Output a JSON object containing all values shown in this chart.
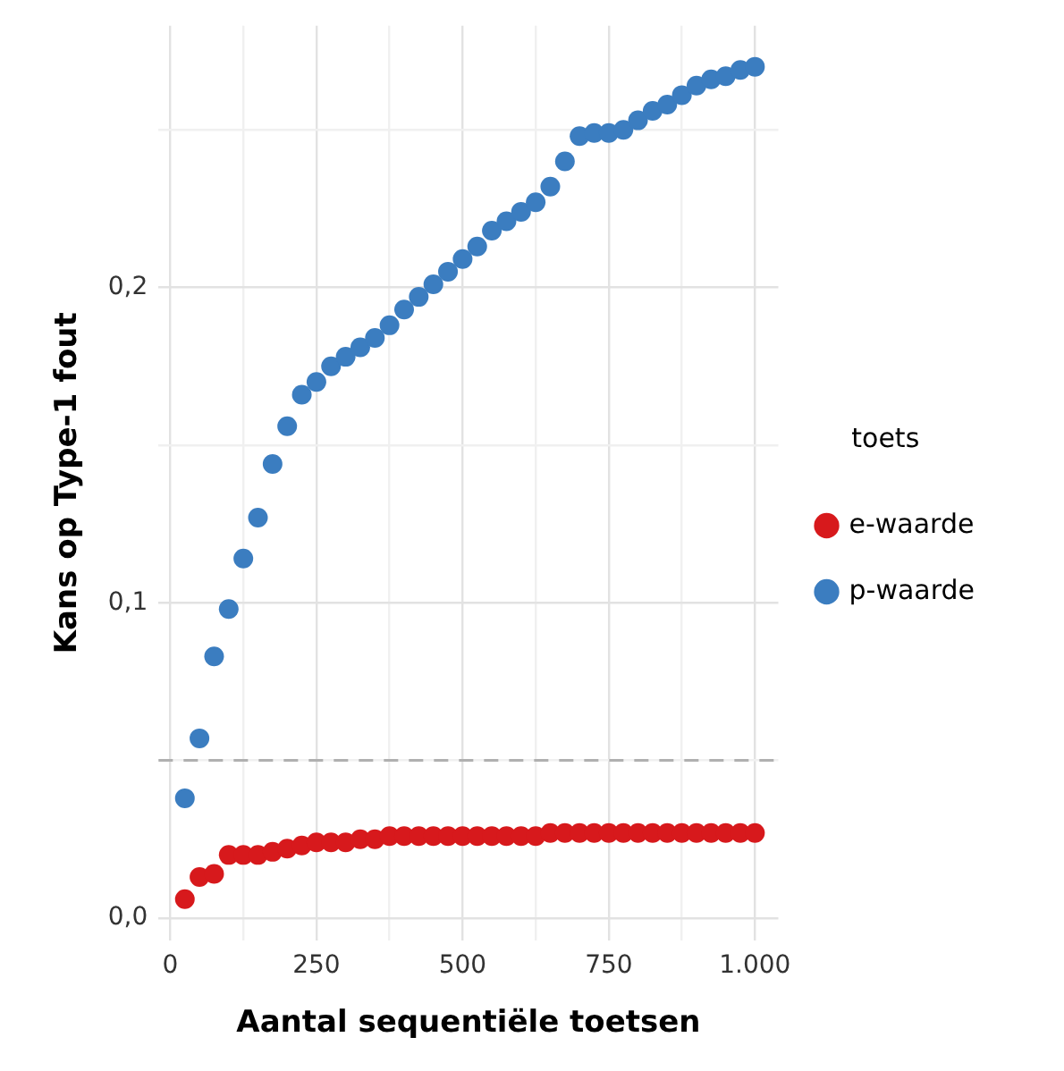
{
  "chart_data": {
    "type": "scatter",
    "xlabel": "Aantal sequentiële toetsen",
    "ylabel": "Kans op Type-1 fout",
    "legend_title": "toets",
    "x": [
      25,
      50,
      75,
      100,
      125,
      150,
      175,
      200,
      225,
      250,
      275,
      300,
      325,
      350,
      375,
      400,
      425,
      450,
      475,
      500,
      525,
      550,
      575,
      600,
      625,
      650,
      675,
      700,
      725,
      750,
      775,
      800,
      825,
      850,
      875,
      900,
      925,
      950,
      975,
      1000
    ],
    "series": [
      {
        "name": "e-waarde",
        "color": "#d7191c",
        "values": [
          0.006,
          0.013,
          0.014,
          0.02,
          0.02,
          0.02,
          0.021,
          0.022,
          0.023,
          0.024,
          0.024,
          0.024,
          0.025,
          0.025,
          0.026,
          0.026,
          0.026,
          0.026,
          0.026,
          0.026,
          0.026,
          0.026,
          0.026,
          0.026,
          0.026,
          0.027,
          0.027,
          0.027,
          0.027,
          0.027,
          0.027,
          0.027,
          0.027,
          0.027,
          0.027,
          0.027,
          0.027,
          0.027,
          0.027,
          0.027
        ]
      },
      {
        "name": "p-waarde",
        "color": "#3b7dc0",
        "values": [
          0.038,
          0.057,
          0.083,
          0.098,
          0.114,
          0.127,
          0.144,
          0.156,
          0.166,
          0.17,
          0.175,
          0.178,
          0.181,
          0.184,
          0.188,
          0.193,
          0.197,
          0.201,
          0.205,
          0.209,
          0.213,
          0.218,
          0.221,
          0.224,
          0.227,
          0.232,
          0.24,
          0.248,
          0.249,
          0.249,
          0.25,
          0.253,
          0.256,
          0.258,
          0.261,
          0.264,
          0.266,
          0.267,
          0.269,
          0.27
        ]
      }
    ],
    "xlim": [
      -20,
      1040
    ],
    "xticks": [
      0,
      {
        "value": 125,
        "label": null
      },
      250,
      {
        "value": 375,
        "label": null
      },
      500,
      {
        "value": 625,
        "label": null
      },
      750,
      {
        "value": 875,
        "label": null
      },
      {
        "value": 1000,
        "label": "1.000"
      }
    ],
    "ylim": [
      -0.007,
      0.283
    ],
    "yticks": [
      {
        "value": 0,
        "label": "0,0"
      },
      {
        "value": 0.05,
        "label": null
      },
      {
        "value": 0.1,
        "label": "0,1"
      },
      {
        "value": 0.15,
        "label": null
      },
      {
        "value": 0.2,
        "label": "0,2"
      },
      {
        "value": 0.25,
        "label": null
      }
    ],
    "ref_lines": [
      {
        "axis": "y",
        "value": 0.05,
        "color": "#b0b0b0",
        "line_style": "dashed"
      }
    ],
    "grid": true,
    "legend": "right",
    "marker": "circle"
  }
}
